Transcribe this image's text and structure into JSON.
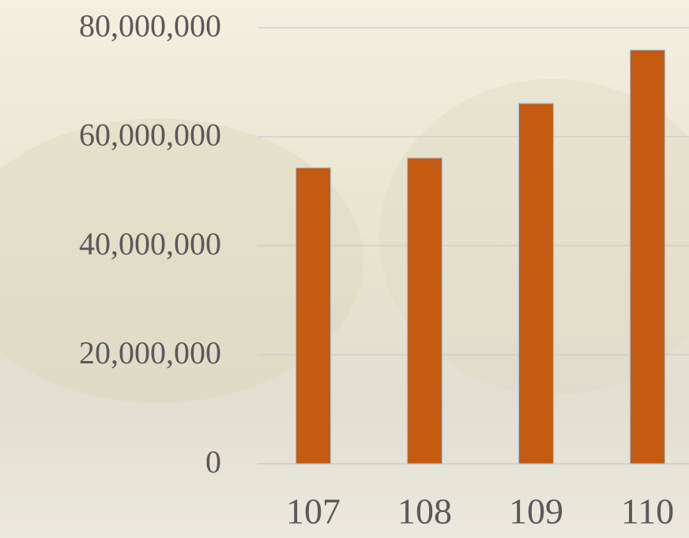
{
  "chart_data": {
    "type": "bar",
    "categories": [
      "107",
      "108",
      "109",
      "110"
    ],
    "values": [
      54300000,
      56100000,
      66100000,
      75900000
    ],
    "color": "#c55a11",
    "ylim": [
      0,
      80000000
    ],
    "yticks": [
      {
        "value": 0,
        "label": "0"
      },
      {
        "value": 20000000,
        "label": "20,000,000"
      },
      {
        "value": 40000000,
        "label": "40,000,000"
      },
      {
        "value": 60000000,
        "label": "60,000,000"
      },
      {
        "value": 80000000,
        "label": "80,000,000"
      }
    ],
    "grid": true
  }
}
